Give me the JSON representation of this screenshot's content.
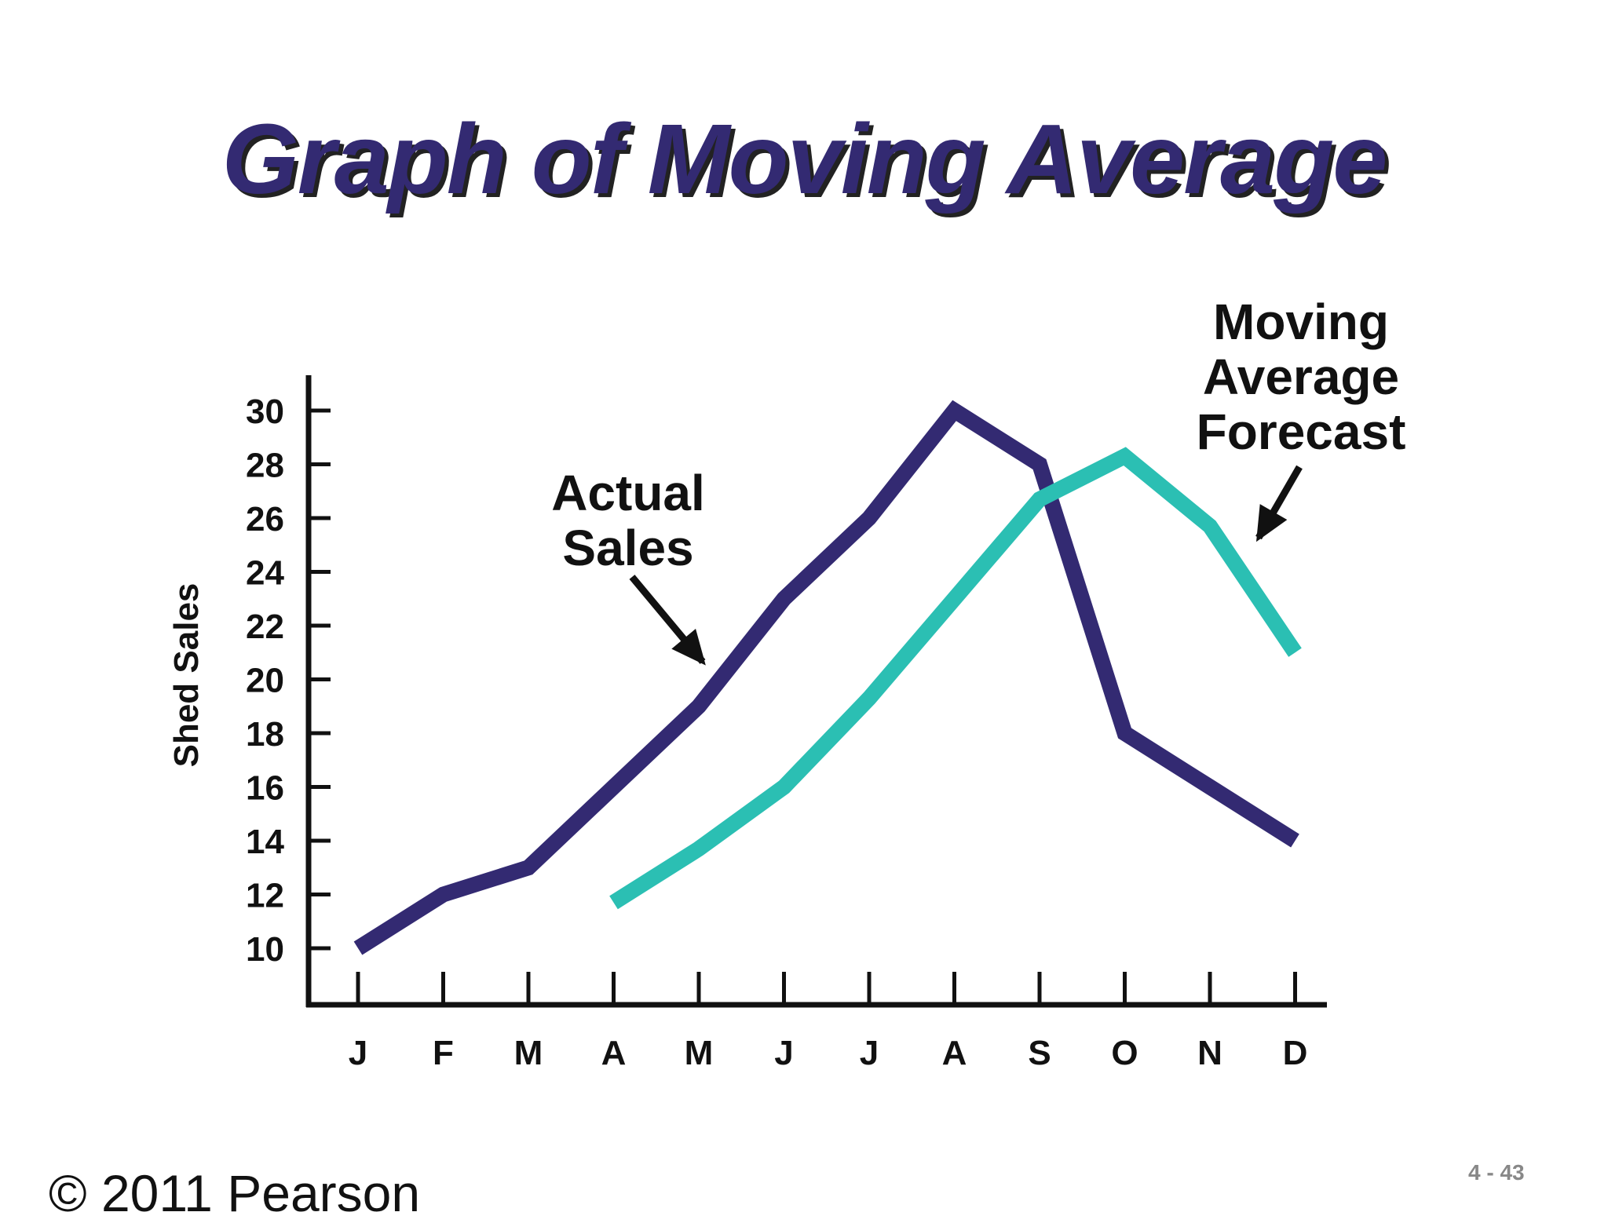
{
  "title": "Graph of Moving Average",
  "chart_data": {
    "type": "line",
    "categories": [
      "J",
      "F",
      "M",
      "A",
      "M",
      "J",
      "J",
      "A",
      "S",
      "O",
      "N",
      "D"
    ],
    "ylabel": "Shed Sales",
    "xlabel": "",
    "yticks": [
      10,
      12,
      14,
      16,
      18,
      20,
      22,
      24,
      26,
      28,
      30
    ],
    "ylim": [
      10,
      30
    ],
    "grid": false,
    "series": [
      {
        "key": "actual",
        "color": "#332a72",
        "values": [
          10,
          12,
          13,
          16,
          19,
          23,
          26,
          30,
          28,
          18,
          16,
          14
        ]
      },
      {
        "key": "forecast",
        "color": "#2bbfb3",
        "values": [
          null,
          null,
          null,
          11.7,
          13.7,
          16,
          19.3,
          23,
          26.7,
          28.3,
          25.7,
          21
        ]
      }
    ],
    "annotations": [
      {
        "key": "actual",
        "lines": [
          "Actual",
          "Sales"
        ]
      },
      {
        "key": "forecast",
        "lines": [
          "Moving",
          "Average",
          "Forecast"
        ]
      }
    ]
  },
  "footer": {
    "copyright": "© 2011 Pearson",
    "slide_number": "4 - 43"
  }
}
